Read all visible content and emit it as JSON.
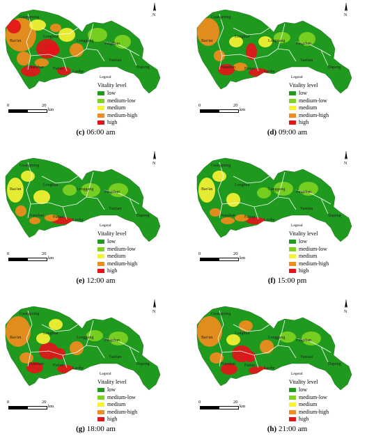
{
  "legend": {
    "title": "Legend",
    "subtitle": "Vitality level",
    "items": [
      {
        "label": "low",
        "color": "#1f9a1f"
      },
      {
        "label": "medium-low",
        "color": "#7ed321"
      },
      {
        "label": "medium",
        "color": "#f5f233"
      },
      {
        "label": "medium-high",
        "color": "#f28c1e"
      },
      {
        "label": "high",
        "color": "#e3141a"
      }
    ]
  },
  "scale": {
    "start": "0",
    "end": "20",
    "unit": "km"
  },
  "north_label": "N",
  "places": [
    "Guangming",
    "Bao'an",
    "Longgang",
    "Pingshan",
    "Nanshan",
    "Futian",
    "Luohu",
    "Yantian",
    "Dapeng",
    "Longhua"
  ],
  "panels": [
    {
      "letter": "(c)",
      "time": "06:00 am"
    },
    {
      "letter": "(d)",
      "time": "09:00 am"
    },
    {
      "letter": "(e)",
      "time": "12:00 am"
    },
    {
      "letter": "(f)",
      "time": "15:00 pm"
    },
    {
      "letter": "(g)",
      "time": "18:00 am"
    },
    {
      "letter": "(h)",
      "time": "21:00 am"
    }
  ]
}
